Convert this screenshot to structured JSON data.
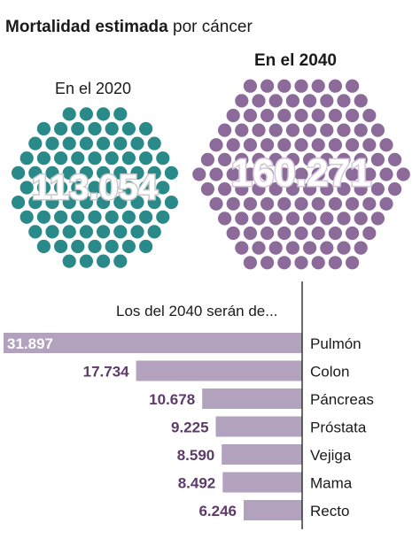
{
  "title": {
    "bold": "Mortalidad estimada",
    "rest": "por cáncer"
  },
  "colors": {
    "teal": "#2a8a8a",
    "purple": "#8c6b9a",
    "bar": "#b3a2bd",
    "label": "#5e3a6b",
    "axis": "#1a1a1a"
  },
  "totals": [
    {
      "year_label": "En el 2020",
      "value_label": "113.054",
      "value": 113054
    },
    {
      "year_label": "En el 2040",
      "value_label": "160.271",
      "value": 160271
    }
  ],
  "subtitle": "Los del 2040 serán de...",
  "chart_data": {
    "type": "bar",
    "categories": [
      "Pulmón",
      "Colon",
      "Páncreas",
      "Próstata",
      "Vejiga",
      "Mama",
      "Recto"
    ],
    "values": [
      31897,
      17734,
      10678,
      9225,
      8590,
      8492,
      6246
    ],
    "value_labels": [
      "31.897",
      "17.734",
      "10.678",
      "9.225",
      "8.590",
      "8.492",
      "6.246"
    ],
    "xlim": [
      0,
      31897
    ]
  }
}
